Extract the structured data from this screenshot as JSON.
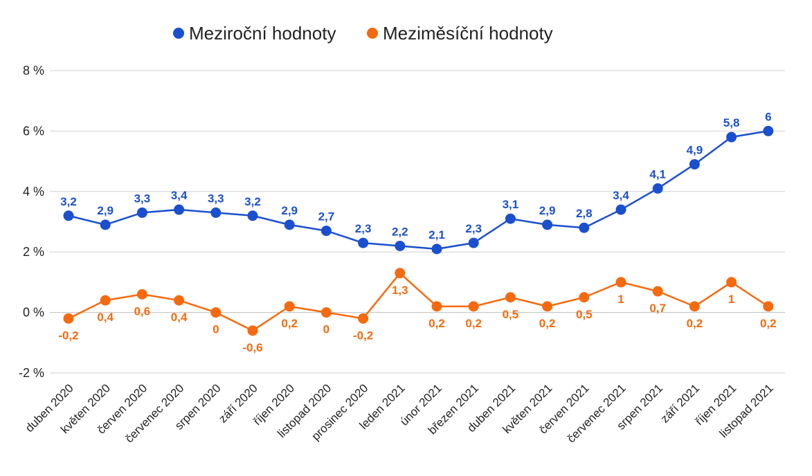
{
  "chart_data": {
    "type": "line",
    "categories": [
      "duben 2020",
      "květen 2020",
      "červen 2020",
      "červenec 2020",
      "srpen 2020",
      "září 2020",
      "říjen 2020",
      "listopad 2020",
      "prosinec 2020",
      "leden 2021",
      "únor 2021",
      "březen 2021",
      "duben 2021",
      "květen 2021",
      "červen 2021",
      "červenec 2021",
      "srpen 2021",
      "září 2021",
      "říjen 2021",
      "listopad 2021"
    ],
    "series": [
      {
        "name": "Meziroční hodnoty",
        "color": "#1a4fcf",
        "values": [
          3.2,
          2.9,
          3.3,
          3.4,
          3.3,
          3.2,
          2.9,
          2.7,
          2.3,
          2.2,
          2.1,
          2.3,
          3.1,
          2.9,
          2.8,
          3.4,
          4.1,
          4.9,
          5.8,
          6
        ],
        "labels": [
          "3,2",
          "2,9",
          "3,3",
          "3,4",
          "3,3",
          "3,2",
          "2,9",
          "2,7",
          "2,3",
          "2,2",
          "2,1",
          "2,3",
          "3,1",
          "2,9",
          "2,8",
          "3,4",
          "4,1",
          "4,9",
          "5,8",
          "6"
        ]
      },
      {
        "name": "Meziměsíční hodnoty",
        "color": "#f56a0f",
        "values": [
          -0.2,
          0.4,
          0.6,
          0.4,
          0,
          -0.6,
          0.2,
          0,
          -0.2,
          1.3,
          0.2,
          0.2,
          0.5,
          0.2,
          0.5,
          1,
          0.7,
          0.2,
          1,
          0.2
        ],
        "labels": [
          "-0,2",
          "0,4",
          "0,6",
          "0,4",
          "0",
          "-0,6",
          "0,2",
          "0",
          "-0,2",
          "1,3",
          "0,2",
          "0,2",
          "0,5",
          "0,2",
          "0,5",
          "1",
          "0,7",
          "0,2",
          "1",
          "0,2"
        ]
      }
    ],
    "ylim": [
      -2,
      8
    ],
    "yticks": [
      {
        "value": 8,
        "label": "8 %"
      },
      {
        "value": 6,
        "label": "6 %"
      },
      {
        "value": 4,
        "label": "4 %"
      },
      {
        "value": 2,
        "label": "2 %"
      },
      {
        "value": 0,
        "label": "0 %"
      },
      {
        "value": -2,
        "label": "-2 %"
      }
    ],
    "grid": true,
    "legend_position": "top-center",
    "title": "",
    "xlabel": "",
    "ylabel": ""
  }
}
